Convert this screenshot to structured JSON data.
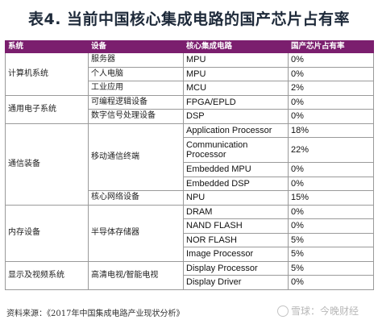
{
  "title": "表4. 当前中国核心集成电路的国产芯片占有率",
  "headers": [
    "系统",
    "设备",
    "核心集成电路",
    "国产芯片占有率"
  ],
  "rows": [
    {
      "system": "计算机系统",
      "system_span": 3,
      "device": "服务器",
      "device_span": 1,
      "chip": "MPU",
      "share": "0%"
    },
    {
      "device": "个人电脑",
      "device_span": 1,
      "chip": "MPU",
      "share": "0%"
    },
    {
      "device": "工业应用",
      "device_span": 1,
      "chip": "MCU",
      "share": "2%"
    },
    {
      "system": "通用电子系统",
      "system_span": 2,
      "device": "可编程逻辑设备",
      "device_span": 1,
      "chip": "FPGA/EPLD",
      "share": "0%"
    },
    {
      "device": "数字信号处理设备",
      "device_span": 1,
      "chip": "DSP",
      "share": "0%"
    },
    {
      "system": "通信装备",
      "system_span": 5,
      "device": "移动通信终端",
      "device_span": 4,
      "chip": "Application Processor",
      "share": "18%"
    },
    {
      "chip": "Communication Processor",
      "share": "22%",
      "tall": true
    },
    {
      "chip": "Embedded MPU",
      "share": "0%"
    },
    {
      "chip": "Embedded DSP",
      "share": "0%"
    },
    {
      "device": "核心网络设备",
      "device_span": 1,
      "chip": "NPU",
      "share": "15%"
    },
    {
      "system": "内存设备",
      "system_span": 4,
      "device": "半导体存储器",
      "device_span": 4,
      "chip": "DRAM",
      "share": "0%"
    },
    {
      "chip": "NAND FLASH",
      "share": "0%"
    },
    {
      "chip": "NOR FLASH",
      "share": "5%"
    },
    {
      "chip": "Image Processor",
      "share": "5%"
    },
    {
      "system": "显示及视频系统",
      "system_span": 2,
      "device": "高清电视/智能电视",
      "device_span": 2,
      "chip": "Display Processor",
      "share": "5%"
    },
    {
      "chip": "Display Driver",
      "share": "0%"
    }
  ],
  "source": "资料来源：《2017年中国集成电路产业现状分析》",
  "watermark": "雪球：今晚财经"
}
